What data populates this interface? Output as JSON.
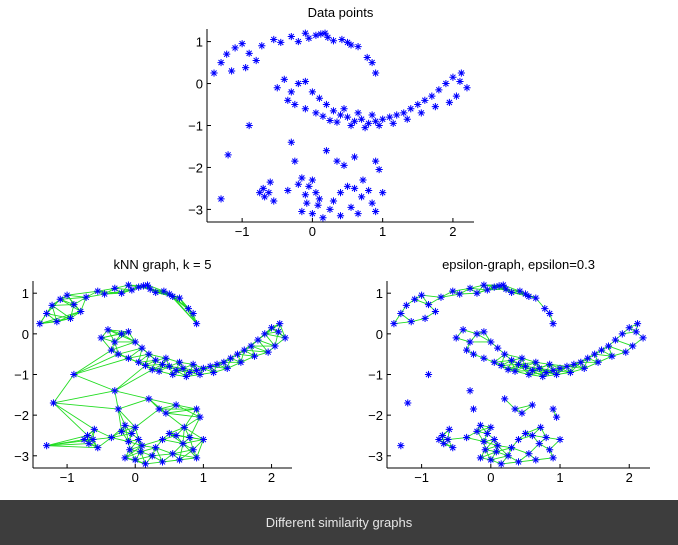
{
  "caption": "Different similarity graphs",
  "colors": {
    "points": "#0000ff",
    "edges": "#22dd22",
    "axes": "#000000",
    "caption_bg": "#3d3d3d",
    "caption_text": "#e6e6e6"
  },
  "chart_data": [
    {
      "type": "scatter",
      "title": "Data points",
      "xlim": [
        -1.5,
        2.3
      ],
      "ylim": [
        -3.3,
        1.3
      ],
      "xticks": [
        "-1",
        "0",
        "1",
        "2"
      ],
      "yticks": [
        "1",
        "0",
        "-1",
        "-2",
        "-3"
      ],
      "marker": "asterisk",
      "edges": "none"
    },
    {
      "type": "scatter",
      "title": "kNN graph, k = 5",
      "xlim": [
        -1.5,
        2.3
      ],
      "ylim": [
        -3.3,
        1.3
      ],
      "xticks": [
        "-1",
        "0",
        "1",
        "2"
      ],
      "yticks": [
        "1",
        "0",
        "-1",
        "-2",
        "-3"
      ],
      "marker": "asterisk",
      "edges": "knn",
      "k": 5
    },
    {
      "type": "scatter",
      "title": "epsilon-graph, epsilon=0.3",
      "xlim": [
        -1.5,
        2.3
      ],
      "ylim": [
        -3.3,
        1.3
      ],
      "xticks": [
        "-1",
        "0",
        "1",
        "2"
      ],
      "yticks": [
        "1",
        "0",
        "-1",
        "-2",
        "-3"
      ],
      "marker": "asterisk",
      "edges": "epsilon",
      "epsilon": 0.3
    }
  ],
  "points": [
    [
      -1.4,
      0.25
    ],
    [
      -1.3,
      0.5
    ],
    [
      -1.22,
      0.7
    ],
    [
      -1.1,
      0.85
    ],
    [
      -1.0,
      0.95
    ],
    [
      -0.9,
      0.72
    ],
    [
      -0.8,
      0.55
    ],
    [
      -0.72,
      0.9
    ],
    [
      -0.95,
      0.38
    ],
    [
      -1.15,
      0.3
    ],
    [
      -0.55,
      1.05
    ],
    [
      -0.45,
      0.98
    ],
    [
      -0.3,
      1.12
    ],
    [
      -0.2,
      1.0
    ],
    [
      -0.05,
      1.08
    ],
    [
      0.05,
      1.15
    ],
    [
      0.12,
      1.18
    ],
    [
      0.22,
      1.1
    ],
    [
      0.3,
      1.02
    ],
    [
      0.42,
      1.05
    ],
    [
      0.55,
      0.92
    ],
    [
      0.65,
      0.88
    ],
    [
      0.78,
      0.62
    ],
    [
      0.85,
      0.5
    ],
    [
      0.9,
      0.25
    ],
    [
      -0.1,
      1.2
    ],
    [
      0.18,
      1.2
    ],
    [
      0.5,
      0.98
    ],
    [
      -0.5,
      -0.1
    ],
    [
      -0.4,
      0.1
    ],
    [
      -0.3,
      -0.2
    ],
    [
      -0.2,
      0.0
    ],
    [
      -0.1,
      0.05
    ],
    [
      0.0,
      -0.2
    ],
    [
      0.1,
      -0.35
    ],
    [
      0.2,
      -0.5
    ],
    [
      0.3,
      -0.65
    ],
    [
      0.4,
      -0.75
    ],
    [
      0.5,
      -0.8
    ],
    [
      0.6,
      -0.9
    ],
    [
      0.7,
      -0.85
    ],
    [
      0.8,
      -0.95
    ],
    [
      0.9,
      -0.9
    ],
    [
      1.0,
      -0.85
    ],
    [
      1.1,
      -0.8
    ],
    [
      1.2,
      -0.75
    ],
    [
      1.3,
      -0.7
    ],
    [
      1.4,
      -0.6
    ],
    [
      1.5,
      -0.5
    ],
    [
      1.6,
      -0.4
    ],
    [
      1.7,
      -0.3
    ],
    [
      1.8,
      -0.15
    ],
    [
      1.9,
      0.0
    ],
    [
      2.0,
      0.15
    ],
    [
      2.1,
      0.05
    ],
    [
      2.2,
      -0.1
    ],
    [
      2.05,
      -0.3
    ],
    [
      1.95,
      -0.45
    ],
    [
      -0.35,
      -0.4
    ],
    [
      -0.25,
      -0.5
    ],
    [
      -0.1,
      -0.6
    ],
    [
      0.05,
      -0.7
    ],
    [
      0.15,
      -0.78
    ],
    [
      0.25,
      -0.88
    ],
    [
      0.35,
      -0.92
    ],
    [
      0.55,
      -1.0
    ],
    [
      0.75,
      -1.05
    ],
    [
      0.95,
      -1.0
    ],
    [
      1.15,
      -0.95
    ],
    [
      1.35,
      -0.85
    ],
    [
      1.55,
      -0.7
    ],
    [
      1.75,
      -0.55
    ],
    [
      0.45,
      -0.6
    ],
    [
      0.65,
      -0.7
    ],
    [
      0.85,
      -0.75
    ],
    [
      2.12,
      0.25
    ],
    [
      -1.2,
      -1.7
    ],
    [
      -1.3,
      -2.75
    ],
    [
      -0.9,
      -1.0
    ],
    [
      -0.6,
      -2.35
    ],
    [
      -0.7,
      -2.5
    ],
    [
      -0.75,
      -2.6
    ],
    [
      -0.68,
      -2.7
    ],
    [
      -0.55,
      -2.8
    ],
    [
      -0.62,
      -2.6
    ],
    [
      -0.3,
      -1.4
    ],
    [
      -0.25,
      -1.85
    ],
    [
      -0.15,
      -2.25
    ],
    [
      -0.05,
      -2.45
    ],
    [
      0.0,
      -2.3
    ],
    [
      0.05,
      -2.6
    ],
    [
      -0.1,
      -2.65
    ],
    [
      0.1,
      -2.75
    ],
    [
      -0.15,
      -3.05
    ],
    [
      0.0,
      -3.1
    ],
    [
      0.15,
      -3.2
    ],
    [
      0.25,
      -3.0
    ],
    [
      0.3,
      -2.8
    ],
    [
      0.4,
      -2.6
    ],
    [
      0.5,
      -2.45
    ],
    [
      0.6,
      -2.5
    ],
    [
      0.7,
      -2.7
    ],
    [
      0.8,
      -2.55
    ],
    [
      0.85,
      -2.85
    ],
    [
      0.9,
      -3.05
    ],
    [
      0.55,
      -2.95
    ],
    [
      0.2,
      -1.6
    ],
    [
      0.35,
      -1.85
    ],
    [
      0.45,
      -1.95
    ],
    [
      0.6,
      -1.75
    ],
    [
      0.9,
      -1.85
    ],
    [
      0.95,
      -2.05
    ],
    [
      1.0,
      -2.6
    ],
    [
      -0.2,
      -2.4
    ],
    [
      0.08,
      -2.9
    ],
    [
      0.4,
      -3.15
    ],
    [
      0.72,
      -2.3
    ],
    [
      -0.35,
      -2.55
    ],
    [
      -0.08,
      -2.85
    ],
    [
      0.65,
      -3.1
    ]
  ]
}
